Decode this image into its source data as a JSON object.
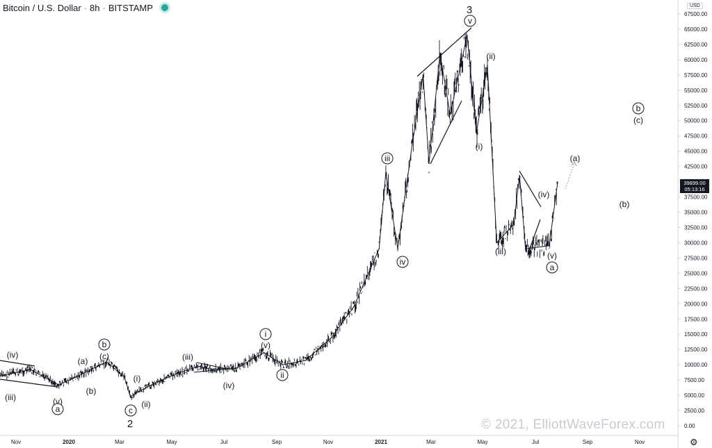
{
  "header": {
    "symbol": "Bitcoin / U.S. Dollar",
    "interval": "8h",
    "exchange": "BITSTAMP"
  },
  "price_axis": {
    "unit": "USD",
    "ticks": [
      "67500.00",
      "65000.00",
      "62500.00",
      "60000.00",
      "57500.00",
      "55000.00",
      "52500.00",
      "50000.00",
      "47500.00",
      "45000.00",
      "42500.00",
      "37500.00",
      "35000.00",
      "32500.00",
      "30000.00",
      "27500.00",
      "25000.00",
      "22500.00",
      "20000.00",
      "17500.00",
      "15000.00",
      "12500.00",
      "10000.00",
      "7500.00",
      "5000.00",
      "2500.00",
      "0.00"
    ]
  },
  "last_price": {
    "value": "39899.00",
    "countdown": "05:13:16"
  },
  "time_axis": {
    "labels": [
      "Nov",
      "2020",
      "Mar",
      "May",
      "Jul",
      "Sep",
      "Nov",
      "2021",
      "Mar",
      "May",
      "Jul",
      "Sep",
      "Nov"
    ]
  },
  "watermark": "© 2021, ElliottWaveForex.com",
  "chart_data": {
    "type": "line",
    "title": "Bitcoin / U.S. Dollar · 8h · BITSTAMP",
    "ylabel": "USD",
    "ylim": [
      0,
      68000
    ],
    "x": [
      "2019-10-10",
      "2019-11-15",
      "2019-12-18",
      "2020-01-05",
      "2020-02-13",
      "2020-03-05",
      "2020-03-12",
      "2020-03-18",
      "2020-04-10",
      "2020-05-10",
      "2020-06-01",
      "2020-06-15",
      "2020-07-15",
      "2020-08-17",
      "2020-09-08",
      "2020-10-05",
      "2020-11-05",
      "2020-12-01",
      "2020-12-31",
      "2021-01-08",
      "2021-01-22",
      "2021-02-08",
      "2021-02-21",
      "2021-02-28",
      "2021-03-13",
      "2021-03-25",
      "2021-04-14",
      "2021-04-25",
      "2021-05-08",
      "2021-05-19",
      "2021-06-08",
      "2021-06-15",
      "2021-06-22",
      "2021-07-20",
      "2021-07-30"
    ],
    "values": [
      8200,
      9200,
      6700,
      7800,
      10500,
      8000,
      4800,
      5300,
      7000,
      8800,
      9700,
      9300,
      9400,
      12000,
      10000,
      10700,
      14500,
      19500,
      29000,
      41500,
      29000,
      46000,
      57500,
      43000,
      61000,
      51000,
      64000,
      48000,
      59000,
      30000,
      33000,
      41000,
      29000,
      29500,
      39899
    ],
    "series": [
      {
        "name": "BTCUSD",
        "values": [
          8200,
          9200,
          6700,
          7800,
          10500,
          8000,
          4800,
          5300,
          7000,
          8800,
          9700,
          9300,
          9400,
          12000,
          10000,
          10700,
          14500,
          19500,
          29000,
          41500,
          29000,
          46000,
          57500,
          43000,
          61000,
          51000,
          64000,
          48000,
          59000,
          30000,
          33000,
          41000,
          29000,
          29500,
          39899
        ]
      }
    ],
    "annotations": [
      "(iv)",
      "(iii)",
      "(v)",
      "a",
      "(a)",
      "b",
      "(c)",
      "(b)",
      "c",
      "2",
      "(i)",
      "(ii)",
      "(iii)",
      "(iv)",
      "i",
      "(v)",
      "ii",
      "iii",
      "iv",
      "v",
      "3",
      "(ii)",
      "(i)",
      "(iii)",
      "(iv)",
      "(v)",
      "a",
      "(a)",
      "(b)",
      "b",
      "(c)"
    ],
    "grid": false
  }
}
